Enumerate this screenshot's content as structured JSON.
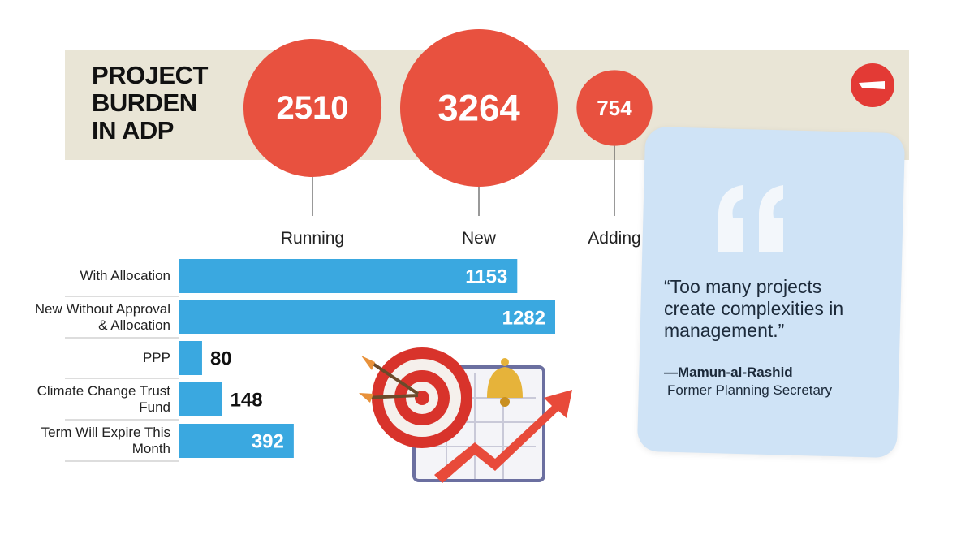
{
  "chart_data": [
    {
      "type": "bubble",
      "title": "PROJECT BURDEN IN ADP",
      "categories": [
        "Running",
        "New",
        "Adding"
      ],
      "values": [
        2510,
        3264,
        754
      ],
      "color": "#e8513f"
    },
    {
      "type": "hbar",
      "categories": [
        "With Allocation",
        "New Without Approval & Allocation",
        "PPP",
        "Climate Change Trust Fund",
        "Term Will Expire This Month"
      ],
      "values": [
        1153,
        1282,
        80,
        148,
        392
      ],
      "color": "#3aa8e0"
    }
  ],
  "quote": {
    "text": "“Too many projects create complexities in management.”",
    "author": "—Mamun-al-Rashid",
    "role": "Former Planning Secretary"
  }
}
